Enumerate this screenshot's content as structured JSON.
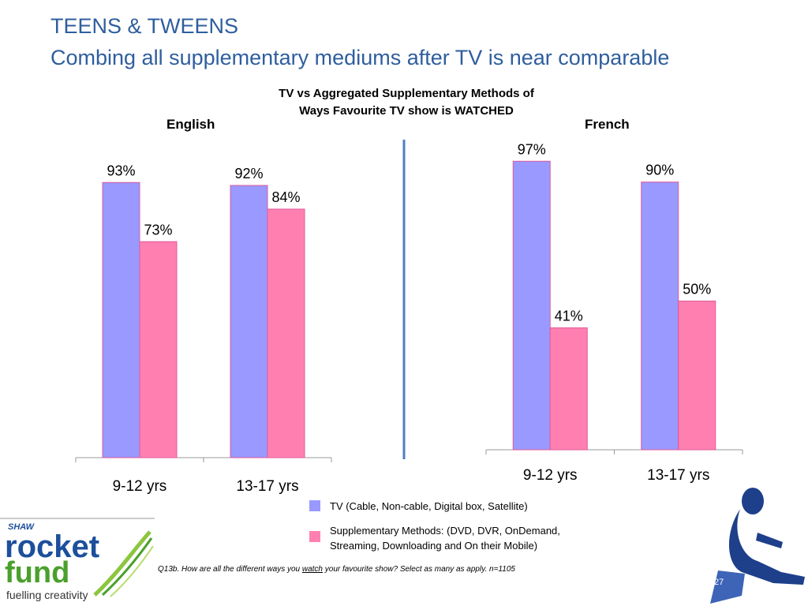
{
  "slide": {
    "title_line1": "TEENS & TWEENS",
    "title_line2": "Combing all supplementary mediums after TV is near comparable",
    "chart_title_line1": "TV vs Aggregated Supplementary Methods of",
    "chart_title_line2": "Ways Favourite TV show is WATCHED",
    "footnote_prefix": "Q13b. How are all the different ways you ",
    "footnote_underlined": "watch",
    "footnote_suffix": " your favourite show? Select as many as apply. n=1105",
    "page_number": "27",
    "logo": {
      "shaw": "SHAW",
      "line1": "rocket",
      "line2": "fund",
      "tagline": "fuelling creativity"
    }
  },
  "legend": [
    {
      "label_line1": "TV (Cable, Non-cable, Digital box, Satellite)",
      "label_line2": "",
      "color": "#9999ff"
    },
    {
      "label_line1": "Supplementary Methods: (DVD, DVR, OnDemand,",
      "label_line2": "Streaming, Downloading and On their Mobile)",
      "color": "#ff80b0"
    }
  ],
  "colors": {
    "title": "#2e5e9e",
    "tv": "#9999ff",
    "supp": "#ff80b0",
    "divider": "#4f81bd"
  },
  "chart_data": [
    {
      "type": "bar",
      "title": "English",
      "categories": [
        "9-12 yrs",
        "13-17 yrs"
      ],
      "series": [
        {
          "name": "TV (Cable, Non-cable, Digital box, Satellite)",
          "values": [
            93,
            92
          ],
          "labels": [
            "93%",
            "92%"
          ]
        },
        {
          "name": "Supplementary Methods: (DVD, DVR, OnDemand, Streaming, Downloading and On their Mobile)",
          "values": [
            73,
            84
          ],
          "labels": [
            "73%",
            "84%"
          ]
        }
      ],
      "ylim": [
        0,
        100
      ],
      "grid": false
    },
    {
      "type": "bar",
      "title": "French",
      "categories": [
        "9-12 yrs",
        "13-17 yrs"
      ],
      "series": [
        {
          "name": "TV (Cable, Non-cable, Digital box, Satellite)",
          "values": [
            97,
            90
          ],
          "labels": [
            "97%",
            "90%"
          ]
        },
        {
          "name": "Supplementary Methods: (DVD, DVR, OnDemand, Streaming, Downloading and On their Mobile)",
          "values": [
            41,
            50
          ],
          "labels": [
            "41%",
            "50%"
          ]
        }
      ],
      "ylim": [
        0,
        100
      ],
      "grid": false
    }
  ]
}
